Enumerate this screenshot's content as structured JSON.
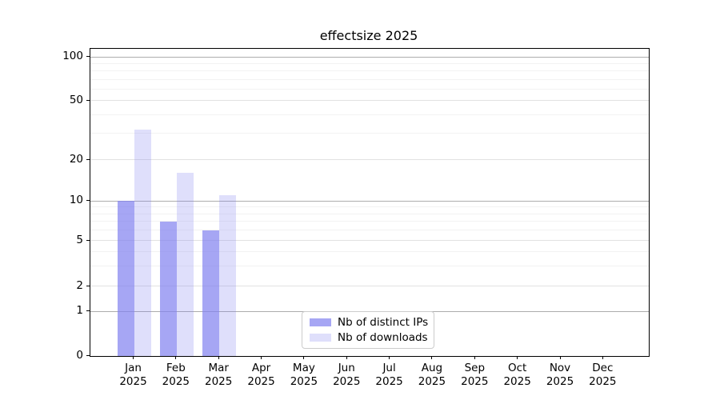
{
  "chart_data": {
    "type": "bar",
    "title": "effectsize 2025",
    "categories": [
      {
        "month": "Jan",
        "year": "2025"
      },
      {
        "month": "Feb",
        "year": "2025"
      },
      {
        "month": "Mar",
        "year": "2025"
      },
      {
        "month": "Apr",
        "year": "2025"
      },
      {
        "month": "May",
        "year": "2025"
      },
      {
        "month": "Jun",
        "year": "2025"
      },
      {
        "month": "Jul",
        "year": "2025"
      },
      {
        "month": "Aug",
        "year": "2025"
      },
      {
        "month": "Sep",
        "year": "2025"
      },
      {
        "month": "Oct",
        "year": "2025"
      },
      {
        "month": "Nov",
        "year": "2025"
      },
      {
        "month": "Dec",
        "year": "2025"
      }
    ],
    "series": [
      {
        "name": "Nb of distinct IPs",
        "color": "rgba(128,128,240,0.70)",
        "values": [
          10,
          7,
          6,
          0,
          0,
          0,
          0,
          0,
          0,
          0,
          0,
          0
        ]
      },
      {
        "name": "Nb of downloads",
        "color": "rgba(128,128,240,0.25)",
        "values": [
          32,
          16,
          11,
          0,
          0,
          0,
          0,
          0,
          0,
          0,
          0,
          0
        ]
      }
    ],
    "y_axis": {
      "ticks": [
        0,
        1,
        2,
        5,
        10,
        20,
        50,
        100
      ],
      "scale": "log (symlog: linear below 1)",
      "major_gridline_ticks": [
        1,
        10,
        100
      ],
      "minor_gridlines": [
        3,
        4,
        6,
        7,
        8,
        9,
        30,
        40,
        60,
        70,
        80,
        90
      ],
      "ylim": [
        0,
        114
      ]
    },
    "grid": true,
    "legend": {
      "position": "lower center"
    }
  },
  "colors": {
    "bar_base": "#8080f0",
    "grid_major": "#adadad",
    "grid_labeled": "#e2e2e2",
    "grid_minor": "#f2f2f2",
    "spine": "#000000",
    "background": "#ffffff"
  }
}
